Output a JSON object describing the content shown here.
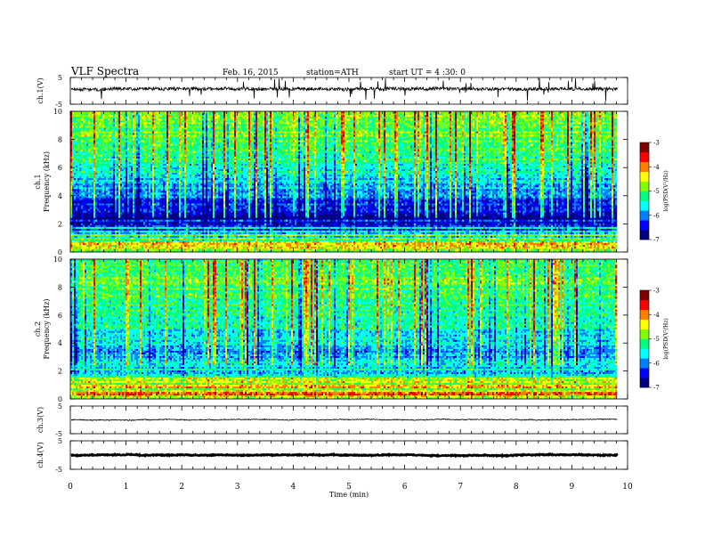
{
  "header": {
    "title": "VLF  Spectra",
    "date": "Feb. 16, 2015",
    "station": "station=ATH",
    "start": "start  UT  =  4  :30: 0"
  },
  "chart_data": [
    {
      "type": "line",
      "panel": "ch1-waveform",
      "ylabel": "ch.1(V)",
      "xlim": [
        0,
        10
      ],
      "ylim": [
        -5,
        5
      ],
      "yticks": [
        "5",
        "-5"
      ],
      "baseline": 0.7,
      "noise_amplitude": 0.6,
      "data_end_x": 9.82
    },
    {
      "type": "heatmap",
      "panel": "ch1-spectrogram",
      "ylabel": "ch.1\nFrequency  (kHz)",
      "xlim": [
        0,
        10
      ],
      "ylim": [
        0,
        10
      ],
      "yticks": [
        "0",
        "2",
        "4",
        "6",
        "8",
        "10"
      ],
      "data_end_x": 9.82,
      "colorbar": {
        "label": "log(PSD(V²/Hz)",
        "ticks": [
          "-3",
          "-4",
          "-5",
          "-6",
          "-7"
        ],
        "range": [
          -7,
          -3
        ]
      },
      "profile_khz": [
        0,
        0.5,
        1,
        1.5,
        2,
        2.5,
        3,
        3.5,
        4,
        5,
        6,
        7,
        8,
        9,
        10
      ],
      "profile_level": [
        -4.6,
        -4.4,
        -5.2,
        -5.6,
        -6.2,
        -6.7,
        -6.5,
        -6.3,
        -6.0,
        -5.7,
        -5.4,
        -5.1,
        -4.9,
        -4.9,
        -4.9
      ]
    },
    {
      "type": "heatmap",
      "panel": "ch2-spectrogram",
      "ylabel": "ch.2\nFrequency  (kHz)",
      "xlim": [
        0,
        10
      ],
      "ylim": [
        0,
        10
      ],
      "yticks": [
        "0",
        "2",
        "4",
        "6",
        "8",
        "10"
      ],
      "data_end_x": 9.82,
      "colorbar": {
        "label": "log(PSD(V²/Hz)",
        "ticks": [
          "-3",
          "-4",
          "-5",
          "-6",
          "-7"
        ],
        "range": [
          -7,
          -3
        ]
      },
      "profile_khz": [
        0,
        0.5,
        1,
        1.5,
        2,
        2.5,
        3,
        3.5,
        4,
        5,
        6,
        7,
        8,
        9,
        10
      ],
      "profile_level": [
        -4.4,
        -4.3,
        -4.9,
        -5.0,
        -5.2,
        -5.5,
        -5.9,
        -5.9,
        -5.7,
        -5.5,
        -5.3,
        -5.1,
        -5.0,
        -5.0,
        -5.0
      ]
    },
    {
      "type": "line",
      "panel": "ch3-waveform",
      "ylabel": "ch.3(V)",
      "xlim": [
        0,
        10
      ],
      "ylim": [
        -5,
        5
      ],
      "yticks": [
        "5",
        "-5"
      ],
      "baseline": 0.1,
      "noise_amplitude": 0.15,
      "data_end_x": 9.82
    },
    {
      "type": "line",
      "panel": "ch4-waveform",
      "ylabel": "ch.4(V)",
      "xlim": [
        0,
        10
      ],
      "ylim": [
        -5,
        5
      ],
      "yticks": [
        "5",
        "-5"
      ],
      "baseline": 0.0,
      "noise_amplitude": 0.15,
      "data_end_x": 9.82
    }
  ],
  "xaxis": {
    "label": "Time  (min)",
    "ticks": [
      "0",
      "1",
      "2",
      "3",
      "4",
      "5",
      "6",
      "7",
      "8",
      "9",
      "10"
    ]
  },
  "colormap": [
    "#000080",
    "#0000ff",
    "#0080ff",
    "#00ffff",
    "#00ff80",
    "#80ff00",
    "#ffff00",
    "#ff8000",
    "#ff0000",
    "#800000"
  ]
}
